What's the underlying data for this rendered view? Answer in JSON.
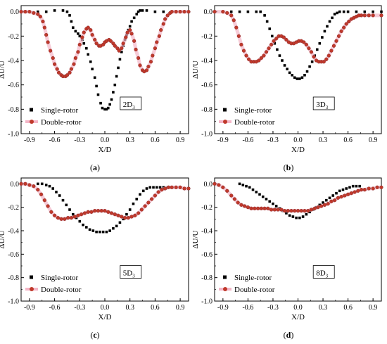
{
  "chart_data": [
    {
      "type": "scatter",
      "panel_label": "(a)",
      "panel_letter": "a",
      "station_label": "2D",
      "station_sub": "3",
      "xlabel": "X/D",
      "ylabel": "ΔU/U",
      "xlim": [
        -1.0,
        1.0
      ],
      "ylim": [
        -1.0,
        0.05
      ],
      "xticks": [
        "-0.9",
        "-0.6",
        "-0.3",
        "0.0",
        "0.3",
        "0.6",
        "0.9"
      ],
      "yticks": [
        "0.0",
        "-0.2",
        "-0.4",
        "-0.6",
        "-0.8",
        "-1.0"
      ],
      "legend": {
        "placement": "bottom-left",
        "entries": [
          "Single-rotor",
          "Double-rotor"
        ]
      },
      "series": [
        {
          "name": "Single-rotor",
          "marker": "square",
          "color": "#000000",
          "x": [
            -1.0,
            -0.9,
            -0.8,
            -0.7,
            -0.6,
            -0.5,
            -0.45,
            -0.42,
            -0.4,
            -0.38,
            -0.35,
            -0.32,
            -0.3,
            -0.27,
            -0.25,
            -0.22,
            -0.2,
            -0.17,
            -0.15,
            -0.12,
            -0.1,
            -0.08,
            -0.05,
            -0.03,
            0.0,
            0.02,
            0.04,
            0.06,
            0.08,
            0.1,
            0.12,
            0.14,
            0.16,
            0.18,
            0.2,
            0.22,
            0.24,
            0.26,
            0.28,
            0.3,
            0.32,
            0.35,
            0.38,
            0.4,
            0.42,
            0.45,
            0.5,
            0.6,
            0.7,
            0.8,
            0.9,
            1.0
          ],
          "y": [
            0.0,
            0.0,
            0.0,
            0.0,
            0.01,
            0.01,
            0.0,
            -0.03,
            -0.08,
            -0.13,
            -0.16,
            -0.18,
            -0.2,
            -0.23,
            -0.26,
            -0.3,
            -0.35,
            -0.41,
            -0.47,
            -0.54,
            -0.61,
            -0.68,
            -0.75,
            -0.79,
            -0.8,
            -0.8,
            -0.79,
            -0.76,
            -0.72,
            -0.66,
            -0.6,
            -0.53,
            -0.46,
            -0.39,
            -0.33,
            -0.28,
            -0.23,
            -0.19,
            -0.15,
            -0.12,
            -0.08,
            -0.05,
            -0.02,
            0.0,
            0.01,
            0.01,
            0.01,
            0.0,
            0.0,
            0.0,
            0.0,
            0.0
          ]
        },
        {
          "name": "Double-rotor",
          "marker": "circle",
          "color": "#c0392b",
          "x": [
            -1.0,
            -0.95,
            -0.9,
            -0.85,
            -0.8,
            -0.77,
            -0.74,
            -0.72,
            -0.7,
            -0.68,
            -0.65,
            -0.62,
            -0.6,
            -0.57,
            -0.55,
            -0.52,
            -0.5,
            -0.47,
            -0.45,
            -0.42,
            -0.4,
            -0.37,
            -0.35,
            -0.32,
            -0.3,
            -0.27,
            -0.25,
            -0.22,
            -0.2,
            -0.17,
            -0.15,
            -0.12,
            -0.1,
            -0.07,
            -0.05,
            -0.02,
            0.0,
            0.02,
            0.05,
            0.07,
            0.1,
            0.12,
            0.15,
            0.17,
            0.2,
            0.22,
            0.25,
            0.27,
            0.3,
            0.32,
            0.35,
            0.37,
            0.4,
            0.42,
            0.45,
            0.47,
            0.5,
            0.52,
            0.55,
            0.57,
            0.6,
            0.62,
            0.65,
            0.67,
            0.7,
            0.72,
            0.75,
            0.78,
            0.8,
            0.85,
            0.9,
            0.95,
            1.0
          ],
          "y": [
            0.0,
            0.0,
            0.0,
            -0.01,
            -0.02,
            -0.04,
            -0.08,
            -0.13,
            -0.19,
            -0.25,
            -0.32,
            -0.38,
            -0.43,
            -0.47,
            -0.5,
            -0.52,
            -0.53,
            -0.53,
            -0.52,
            -0.5,
            -0.47,
            -0.43,
            -0.38,
            -0.33,
            -0.27,
            -0.21,
            -0.17,
            -0.14,
            -0.13,
            -0.15,
            -0.19,
            -0.23,
            -0.26,
            -0.28,
            -0.28,
            -0.27,
            -0.25,
            -0.24,
            -0.23,
            -0.24,
            -0.26,
            -0.28,
            -0.3,
            -0.32,
            -0.3,
            -0.26,
            -0.21,
            -0.17,
            -0.15,
            -0.18,
            -0.24,
            -0.31,
            -0.38,
            -0.44,
            -0.48,
            -0.49,
            -0.48,
            -0.45,
            -0.41,
            -0.36,
            -0.3,
            -0.25,
            -0.2,
            -0.15,
            -0.1,
            -0.06,
            -0.03,
            -0.01,
            0.0,
            0.0,
            0.0,
            0.0,
            0.0
          ]
        }
      ]
    },
    {
      "type": "scatter",
      "panel_label": "(b)",
      "panel_letter": "b",
      "station_label": "3D",
      "station_sub": "3",
      "xlabel": "X/D",
      "ylabel": "ΔU/U",
      "xlim": [
        -1.0,
        1.0
      ],
      "ylim": [
        -1.0,
        0.05
      ],
      "xticks": [
        "-0.9",
        "-0.6",
        "-0.3",
        "0.0",
        "0.3",
        "0.6",
        "0.9"
      ],
      "yticks": [
        "0.0",
        "-0.2",
        "-0.4",
        "-0.6",
        "-0.8",
        "-1.0"
      ],
      "legend": {
        "placement": "bottom-left",
        "entries": [
          "Single-rotor",
          "Double-rotor"
        ]
      },
      "series": [
        {
          "name": "Single-rotor",
          "marker": "square",
          "color": "#000000",
          "x": [
            -1.0,
            -0.9,
            -0.8,
            -0.7,
            -0.6,
            -0.5,
            -0.45,
            -0.4,
            -0.37,
            -0.34,
            -0.31,
            -0.28,
            -0.25,
            -0.22,
            -0.19,
            -0.16,
            -0.13,
            -0.1,
            -0.07,
            -0.04,
            -0.01,
            0.02,
            0.05,
            0.08,
            0.11,
            0.14,
            0.17,
            0.2,
            0.23,
            0.26,
            0.29,
            0.32,
            0.35,
            0.38,
            0.41,
            0.44,
            0.47,
            0.5,
            0.55,
            0.6,
            0.7,
            0.8,
            0.9,
            1.0
          ],
          "y": [
            0.0,
            0.0,
            0.0,
            0.0,
            0.0,
            0.0,
            0.0,
            -0.03,
            -0.08,
            -0.14,
            -0.2,
            -0.26,
            -0.31,
            -0.36,
            -0.4,
            -0.44,
            -0.47,
            -0.5,
            -0.52,
            -0.54,
            -0.55,
            -0.55,
            -0.54,
            -0.52,
            -0.49,
            -0.45,
            -0.41,
            -0.36,
            -0.31,
            -0.26,
            -0.21,
            -0.16,
            -0.12,
            -0.08,
            -0.05,
            -0.02,
            -0.01,
            0.0,
            0.0,
            0.0,
            0.0,
            0.0,
            0.0,
            0.0
          ]
        },
        {
          "name": "Double-rotor",
          "marker": "circle",
          "color": "#c0392b",
          "x": [
            -1.0,
            -0.9,
            -0.85,
            -0.8,
            -0.77,
            -0.74,
            -0.71,
            -0.68,
            -0.65,
            -0.62,
            -0.59,
            -0.56,
            -0.53,
            -0.5,
            -0.47,
            -0.44,
            -0.41,
            -0.38,
            -0.35,
            -0.32,
            -0.29,
            -0.26,
            -0.23,
            -0.2,
            -0.17,
            -0.14,
            -0.11,
            -0.08,
            -0.05,
            -0.02,
            0.01,
            0.04,
            0.07,
            0.1,
            0.13,
            0.16,
            0.19,
            0.22,
            0.25,
            0.28,
            0.31,
            0.34,
            0.37,
            0.4,
            0.43,
            0.46,
            0.49,
            0.52,
            0.55,
            0.58,
            0.61,
            0.64,
            0.67,
            0.7,
            0.73,
            0.76,
            0.8,
            0.85,
            0.9,
            1.0
          ],
          "y": [
            0.0,
            0.0,
            -0.01,
            -0.03,
            -0.07,
            -0.13,
            -0.2,
            -0.27,
            -0.32,
            -0.36,
            -0.39,
            -0.41,
            -0.41,
            -0.41,
            -0.4,
            -0.38,
            -0.36,
            -0.33,
            -0.3,
            -0.27,
            -0.24,
            -0.22,
            -0.2,
            -0.2,
            -0.21,
            -0.23,
            -0.25,
            -0.26,
            -0.26,
            -0.25,
            -0.24,
            -0.24,
            -0.25,
            -0.27,
            -0.3,
            -0.33,
            -0.37,
            -0.4,
            -0.41,
            -0.41,
            -0.41,
            -0.39,
            -0.36,
            -0.32,
            -0.28,
            -0.24,
            -0.2,
            -0.16,
            -0.13,
            -0.1,
            -0.08,
            -0.06,
            -0.05,
            -0.04,
            -0.03,
            -0.03,
            -0.03,
            -0.03,
            -0.03,
            -0.03
          ]
        }
      ]
    },
    {
      "type": "scatter",
      "panel_label": "(c)",
      "panel_letter": "c",
      "station_label": "5D",
      "station_sub": "3",
      "xlabel": "X/D",
      "ylabel": "ΔU/U",
      "xlim": [
        -1.0,
        1.0
      ],
      "ylim": [
        -1.0,
        0.05
      ],
      "xticks": [
        "-0.9",
        "-0.6",
        "-0.3",
        "0.0",
        "0.3",
        "0.6",
        "0.9"
      ],
      "yticks": [
        "0.0",
        "-0.2",
        "-0.4",
        "-0.6",
        "-0.8",
        "-1.0"
      ],
      "legend": {
        "placement": "bottom-left",
        "entries": [
          "Single-rotor",
          "Double-rotor"
        ]
      },
      "series": [
        {
          "name": "Single-rotor",
          "marker": "square",
          "color": "#000000",
          "x": [
            -0.8,
            -0.75,
            -0.7,
            -0.66,
            -0.62,
            -0.58,
            -0.54,
            -0.5,
            -0.46,
            -0.42,
            -0.38,
            -0.34,
            -0.3,
            -0.26,
            -0.22,
            -0.18,
            -0.14,
            -0.1,
            -0.06,
            -0.02,
            0.02,
            0.06,
            0.1,
            0.14,
            0.18,
            0.22,
            0.26,
            0.3,
            0.34,
            0.38,
            0.42,
            0.46,
            0.5,
            0.54,
            0.58,
            0.62,
            0.66,
            0.7,
            0.75,
            0.8,
            0.85,
            0.9,
            0.95,
            1.0
          ],
          "y": [
            0.0,
            0.0,
            -0.01,
            -0.02,
            -0.04,
            -0.07,
            -0.1,
            -0.14,
            -0.18,
            -0.22,
            -0.26,
            -0.29,
            -0.32,
            -0.35,
            -0.37,
            -0.39,
            -0.4,
            -0.41,
            -0.41,
            -0.41,
            -0.41,
            -0.4,
            -0.38,
            -0.36,
            -0.33,
            -0.3,
            -0.26,
            -0.22,
            -0.17,
            -0.13,
            -0.09,
            -0.06,
            -0.04,
            -0.03,
            -0.03,
            -0.03,
            -0.03,
            -0.03,
            -0.03,
            -0.03,
            -0.03,
            -0.03,
            -0.04,
            -0.04
          ]
        },
        {
          "name": "Double-rotor",
          "marker": "circle",
          "color": "#c0392b",
          "x": [
            -1.0,
            -0.95,
            -0.9,
            -0.85,
            -0.8,
            -0.76,
            -0.72,
            -0.68,
            -0.64,
            -0.6,
            -0.56,
            -0.52,
            -0.48,
            -0.44,
            -0.4,
            -0.36,
            -0.32,
            -0.28,
            -0.24,
            -0.2,
            -0.16,
            -0.12,
            -0.08,
            -0.04,
            0.0,
            0.04,
            0.08,
            0.12,
            0.16,
            0.2,
            0.24,
            0.28,
            0.32,
            0.36,
            0.4,
            0.44,
            0.48,
            0.52,
            0.56,
            0.6,
            0.64,
            0.68,
            0.72,
            0.76,
            0.8,
            0.85,
            0.9,
            0.95,
            1.0
          ],
          "y": [
            0.0,
            0.0,
            -0.01,
            -0.02,
            -0.05,
            -0.09,
            -0.14,
            -0.19,
            -0.24,
            -0.27,
            -0.29,
            -0.3,
            -0.3,
            -0.29,
            -0.29,
            -0.28,
            -0.27,
            -0.26,
            -0.25,
            -0.24,
            -0.24,
            -0.23,
            -0.23,
            -0.23,
            -0.23,
            -0.24,
            -0.25,
            -0.26,
            -0.27,
            -0.28,
            -0.29,
            -0.29,
            -0.28,
            -0.27,
            -0.25,
            -0.22,
            -0.19,
            -0.16,
            -0.13,
            -0.1,
            -0.07,
            -0.05,
            -0.04,
            -0.03,
            -0.03,
            -0.03,
            -0.03,
            -0.04,
            -0.04
          ]
        }
      ]
    },
    {
      "type": "scatter",
      "panel_label": "(d)",
      "panel_letter": "d",
      "station_label": "8D",
      "station_sub": "3",
      "xlabel": "X/D",
      "ylabel": "ΔU/U",
      "xlim": [
        -1.0,
        1.0
      ],
      "ylim": [
        -1.0,
        0.05
      ],
      "xticks": [
        "-0.9",
        "-0.6",
        "-0.3",
        "0.0",
        "0.3",
        "0.6",
        "0.9"
      ],
      "yticks": [
        "0.0",
        "-0.2",
        "-0.4",
        "-0.6",
        "-0.8",
        "-1.0"
      ],
      "legend": {
        "placement": "bottom-left",
        "entries": [
          "Single-rotor",
          "Double-rotor"
        ]
      },
      "series": [
        {
          "name": "Single-rotor",
          "marker": "square",
          "color": "#000000",
          "x": [
            -0.7,
            -0.66,
            -0.62,
            -0.58,
            -0.54,
            -0.5,
            -0.46,
            -0.42,
            -0.38,
            -0.34,
            -0.3,
            -0.26,
            -0.22,
            -0.18,
            -0.14,
            -0.1,
            -0.06,
            -0.02,
            0.02,
            0.06,
            0.1,
            0.14,
            0.18,
            0.22,
            0.26,
            0.3,
            0.34,
            0.38,
            0.42,
            0.46,
            0.5,
            0.54,
            0.58,
            0.62,
            0.66,
            0.7,
            0.74
          ],
          "y": [
            0.0,
            -0.01,
            -0.02,
            -0.03,
            -0.05,
            -0.07,
            -0.09,
            -0.11,
            -0.13,
            -0.15,
            -0.17,
            -0.19,
            -0.21,
            -0.23,
            -0.25,
            -0.27,
            -0.28,
            -0.29,
            -0.29,
            -0.28,
            -0.26,
            -0.24,
            -0.22,
            -0.2,
            -0.18,
            -0.16,
            -0.14,
            -0.12,
            -0.1,
            -0.08,
            -0.06,
            -0.05,
            -0.04,
            -0.03,
            -0.02,
            -0.02,
            -0.02
          ]
        },
        {
          "name": "Double-rotor",
          "marker": "circle",
          "color": "#c0392b",
          "x": [
            -1.0,
            -0.95,
            -0.9,
            -0.85,
            -0.8,
            -0.76,
            -0.72,
            -0.68,
            -0.64,
            -0.6,
            -0.56,
            -0.52,
            -0.48,
            -0.44,
            -0.4,
            -0.36,
            -0.32,
            -0.28,
            -0.24,
            -0.2,
            -0.16,
            -0.12,
            -0.08,
            -0.04,
            0.0,
            0.04,
            0.08,
            0.12,
            0.16,
            0.2,
            0.24,
            0.28,
            0.32,
            0.36,
            0.4,
            0.44,
            0.48,
            0.52,
            0.56,
            0.6,
            0.64,
            0.68,
            0.72,
            0.76,
            0.8,
            0.85,
            0.9,
            0.95,
            1.0
          ],
          "y": [
            0.0,
            -0.01,
            -0.03,
            -0.06,
            -0.1,
            -0.13,
            -0.16,
            -0.18,
            -0.19,
            -0.2,
            -0.21,
            -0.21,
            -0.21,
            -0.21,
            -0.21,
            -0.21,
            -0.22,
            -0.22,
            -0.22,
            -0.22,
            -0.23,
            -0.23,
            -0.23,
            -0.23,
            -0.23,
            -0.23,
            -0.23,
            -0.23,
            -0.22,
            -0.21,
            -0.2,
            -0.19,
            -0.18,
            -0.17,
            -0.15,
            -0.14,
            -0.12,
            -0.11,
            -0.1,
            -0.09,
            -0.08,
            -0.07,
            -0.06,
            -0.05,
            -0.05,
            -0.04,
            -0.04,
            -0.03,
            -0.03
          ]
        }
      ]
    }
  ]
}
